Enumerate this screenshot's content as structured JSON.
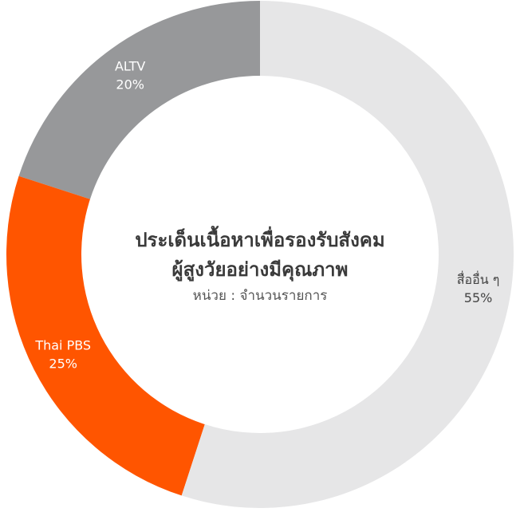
{
  "chart_data": {
    "type": "donut",
    "title": [
      "ประเด็นเนื้อหาเพื่อรองรับสังคม",
      "ผู้สูงวัยอย่างมีคุณภาพ"
    ],
    "subtitle": "หน่วย : จำนวนรายการ",
    "categories": [
      "สื่ออื่น ๆ",
      "Thai PBS",
      "ALTV"
    ],
    "values": [
      55,
      25,
      20
    ],
    "value_labels": [
      "55%",
      "25%",
      "20%"
    ],
    "colors": [
      "#e6e6e7",
      "#ff5500",
      "#97989a"
    ],
    "label_colors": [
      "#444444",
      "#ffffff",
      "#ffffff"
    ]
  }
}
